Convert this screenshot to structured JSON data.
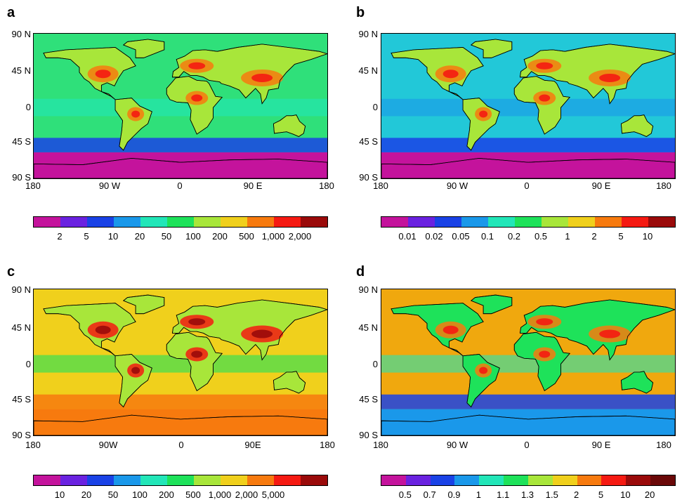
{
  "panels": [
    {
      "letter": "a",
      "lon_labels": [
        "180",
        "90 W",
        "0",
        "90 E",
        "180"
      ],
      "colorbar": {
        "ticks": [
          "2",
          "5",
          "10",
          "20",
          "50",
          "100",
          "200",
          "500",
          "1,000",
          "2,000"
        ],
        "colors": [
          "#c4139c",
          "#6a22e0",
          "#1a42e6",
          "#1a98ea",
          "#22e6b8",
          "#1ee25a",
          "#a8e63a",
          "#f0d01c",
          "#f77a0e",
          "#f51a12",
          "#9a0a0a"
        ]
      }
    },
    {
      "letter": "b",
      "lon_labels": [
        "180",
        "90 W",
        "0",
        "90 E",
        "180"
      ],
      "colorbar": {
        "ticks": [
          "0.01",
          "0.02",
          "0.05",
          "0.1",
          "0.2",
          "0.5",
          "1",
          "2",
          "5",
          "10"
        ],
        "colors": [
          "#c4139c",
          "#6a22e0",
          "#1a42e6",
          "#1a98ea",
          "#22e6b8",
          "#1ee25a",
          "#a8e63a",
          "#f0d01c",
          "#f77a0e",
          "#f51a12",
          "#9a0a0a"
        ]
      }
    },
    {
      "letter": "c",
      "lon_labels": [
        "180",
        "90W",
        "0",
        "90E",
        "180"
      ],
      "colorbar": {
        "ticks": [
          "10",
          "20",
          "50",
          "100",
          "200",
          "500",
          "1,000",
          "2,000",
          "5,000"
        ],
        "colors": [
          "#c4139c",
          "#6a22e0",
          "#1a42e6",
          "#1a98ea",
          "#22e6b8",
          "#1ee25a",
          "#a8e63a",
          "#f0d01c",
          "#f77a0e",
          "#f51a12",
          "#9a0a0a"
        ]
      }
    },
    {
      "letter": "d",
      "lon_labels": [
        "180",
        "90 W",
        "0",
        "90 E",
        "180"
      ],
      "colorbar": {
        "ticks": [
          "0.5",
          "0.7",
          "0.9",
          "1",
          "1.1",
          "1.3",
          "1.5",
          "2",
          "5",
          "10",
          "20"
        ],
        "colors": [
          "#c4139c",
          "#6a22e0",
          "#1a42e6",
          "#1a98ea",
          "#22e6b8",
          "#1ee25a",
          "#a8e63a",
          "#f0d01c",
          "#f77a0e",
          "#f51a12",
          "#9a0a0a",
          "#6a0808"
        ]
      }
    }
  ],
  "lat_labels": [
    "90 N",
    "45 N",
    "0",
    "45 S",
    "90 S"
  ],
  "map_colors": {
    "a": {
      "bg": "#2fe07a",
      "polar": "#c4139c",
      "band": "#1a42e6",
      "hot": "#f77a0e",
      "hot2": "#f51a12",
      "warm": "#a8e63a",
      "ocean": "#22e6b8"
    },
    "b": {
      "bg": "#22c8d8",
      "polar": "#c4139c",
      "band": "#1a42e6",
      "hot": "#f77a0e",
      "hot2": "#f51a12",
      "warm": "#a8e63a",
      "ocean": "#1a98ea"
    },
    "c": {
      "bg": "#f0d01c",
      "polar": "#f77a0e",
      "band": "#f77a0e",
      "hot": "#f51a12",
      "hot2": "#9a0a0a",
      "warm": "#a8e63a",
      "ocean": "#1ee25a"
    },
    "d": {
      "bg": "#f0a80e",
      "polar": "#1a98ea",
      "band": "#1a42e6",
      "hot": "#f77a0e",
      "hot2": "#f51a12",
      "warm": "#1ee25a",
      "ocean": "#22e6b8"
    }
  }
}
